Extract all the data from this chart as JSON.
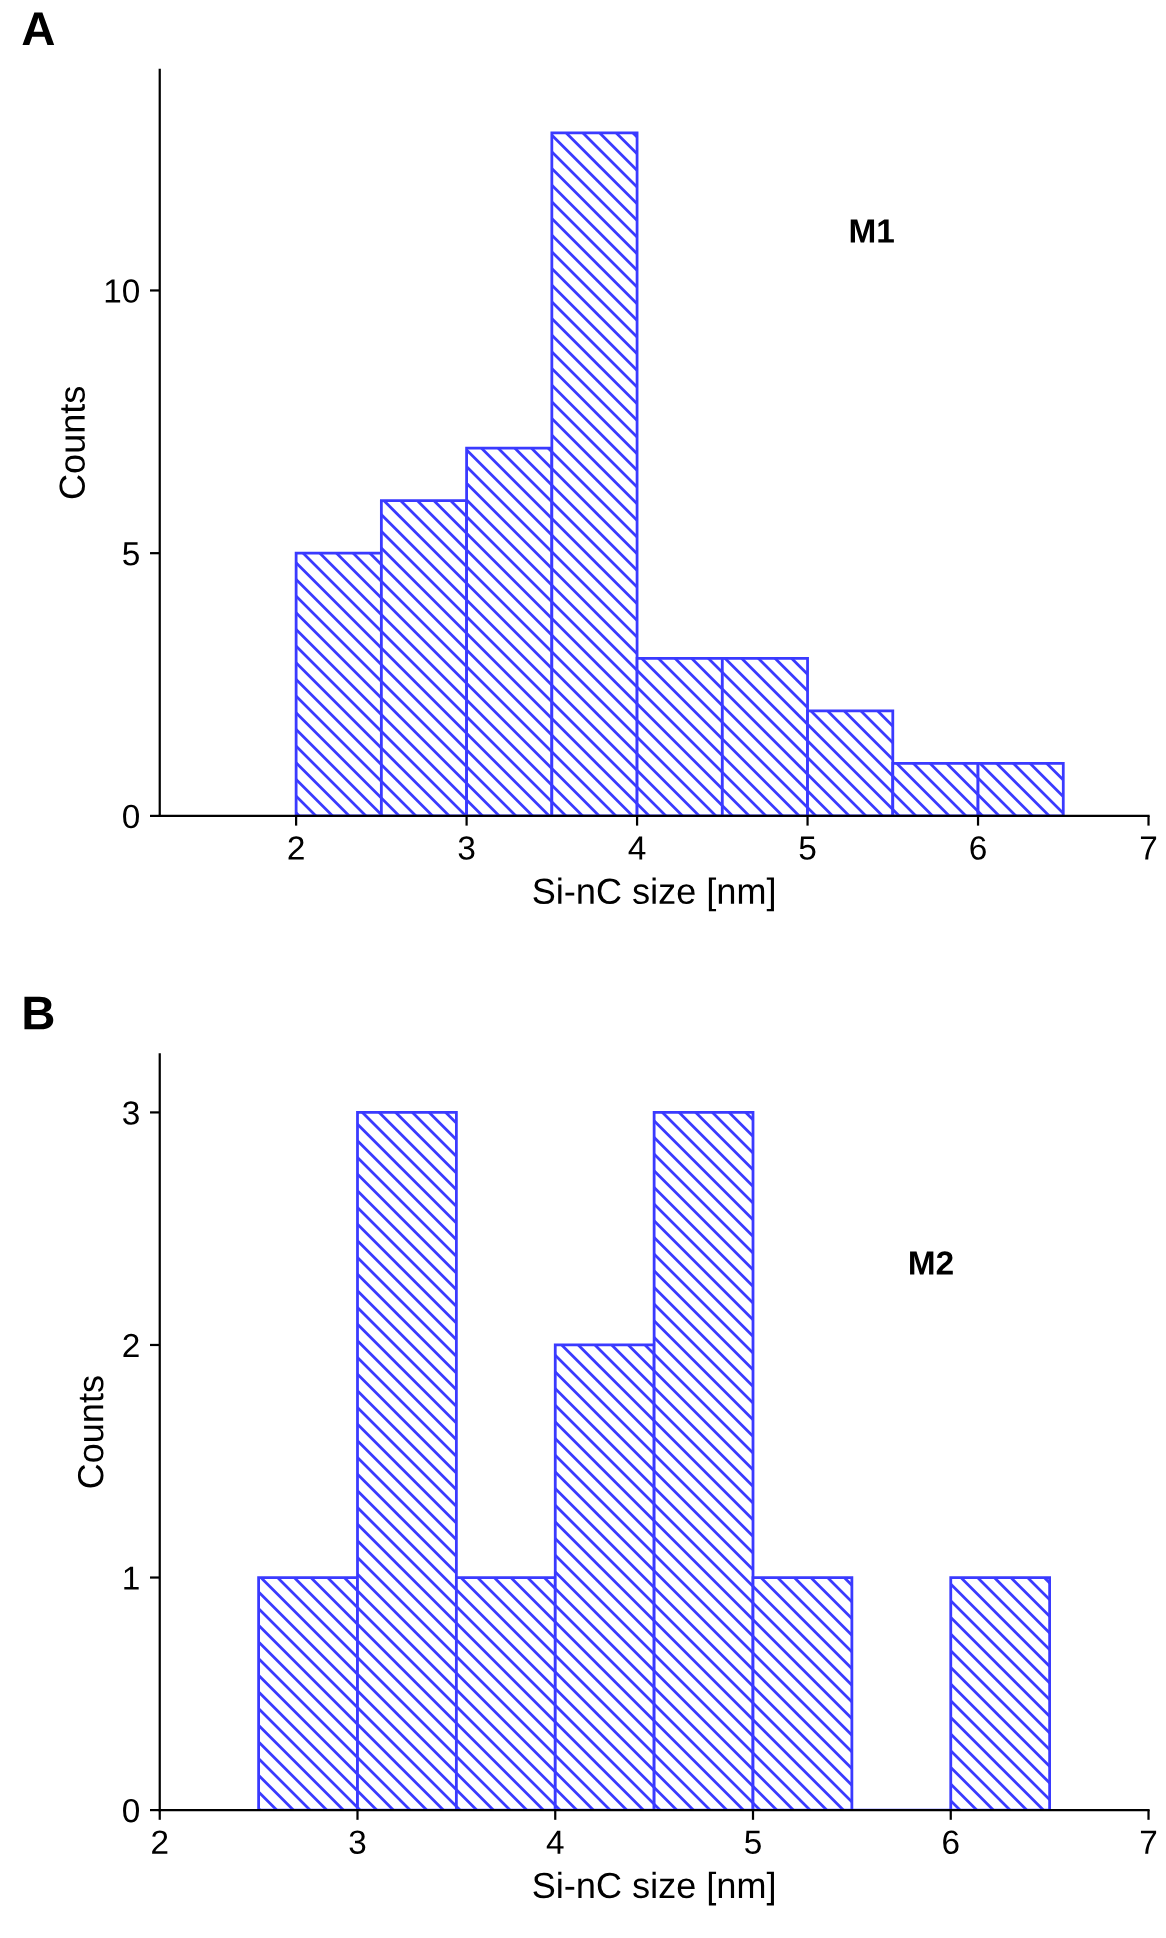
{
  "chart_data": [
    {
      "type": "histogram",
      "title": "A",
      "xlabel": "Si-nC size [nm]",
      "ylabel": "Counts",
      "bins": [
        2,
        2.5,
        3,
        3.5,
        4,
        4.5,
        5,
        5.5,
        6,
        6.5
      ],
      "values": [
        5,
        6,
        7,
        13,
        3,
        3,
        2,
        1,
        1
      ],
      "color": "#3a3aff",
      "xlim": [
        1.2,
        7
      ],
      "xticks": [
        2,
        3,
        4,
        5,
        6,
        7
      ],
      "ylim": [
        0,
        14.2
      ],
      "yticks": [
        0,
        5,
        10
      ],
      "annotations": [
        "M1"
      ],
      "grid": false
    },
    {
      "type": "histogram",
      "title": "B",
      "xlabel": "Si-nC size [nm]",
      "ylabel": "Counts",
      "bins": [
        2.5,
        3,
        3.5,
        4,
        4.5,
        5,
        5.5,
        6,
        6.5
      ],
      "values": [
        1,
        3,
        1,
        2,
        3,
        1,
        0,
        1
      ],
      "color": "#3a3aff",
      "xlim": [
        2,
        7
      ],
      "xticks": [
        2,
        3,
        4,
        5,
        6,
        7
      ],
      "ylim": [
        0,
        3.25
      ],
      "yticks": [
        0,
        1,
        2,
        3
      ],
      "annotations": [
        "M2"
      ],
      "grid": false
    }
  ]
}
